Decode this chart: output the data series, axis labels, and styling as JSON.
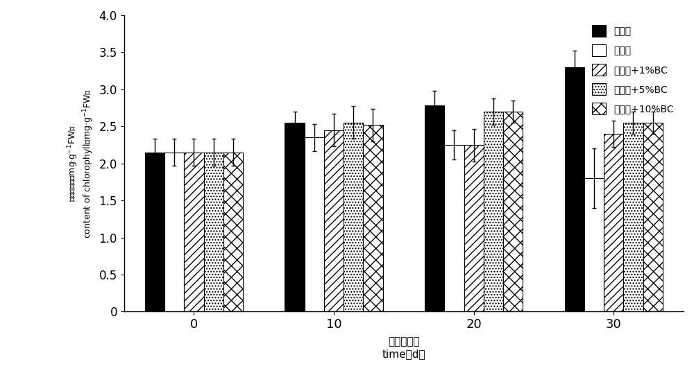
{
  "title": "",
  "xlabel_cn": "时间（天）",
  "xlabel_en": "time（d）",
  "ylabel_cn": "叶绿素含量（mg·g⁻¹FW）",
  "ylabel_en": "content of chlorophyll（mg·g⁻¹FW）",
  "x_positions": [
    0,
    10,
    20,
    30
  ],
  "x_labels": [
    "0",
    "10",
    "20",
    "30"
  ],
  "series_labels": [
    "对照土",
    "重茬土",
    "重茬土+1%BC",
    "重茬土+5%BC",
    "重茬土+10%BC"
  ],
  "bar_values": [
    [
      2.15,
      2.55,
      2.78,
      3.3
    ],
    [
      2.15,
      2.35,
      2.25,
      1.8
    ],
    [
      2.15,
      2.45,
      2.25,
      2.4
    ],
    [
      2.15,
      2.55,
      2.7,
      2.55
    ],
    [
      2.15,
      2.52,
      2.7,
      2.55
    ]
  ],
  "bar_errors": [
    [
      0.18,
      0.15,
      0.2,
      0.22
    ],
    [
      0.18,
      0.18,
      0.2,
      0.4
    ],
    [
      0.18,
      0.22,
      0.22,
      0.18
    ],
    [
      0.18,
      0.22,
      0.18,
      0.15
    ],
    [
      0.18,
      0.22,
      0.15,
      0.15
    ]
  ],
  "ylim": [
    0,
    4.0
  ],
  "yticks": [
    0,
    0.5,
    1.0,
    1.5,
    2.0,
    2.5,
    3.0,
    3.5,
    4.0
  ],
  "bar_width": 0.14,
  "figsize": [
    10.0,
    5.61
  ],
  "dpi": 100,
  "background_color": "#ffffff",
  "hatches": [
    "solid",
    "",
    "/",
    ".",
    "x"
  ],
  "facecolors": [
    "black",
    "white",
    "white",
    "white",
    "white"
  ],
  "edgecolors": [
    "black",
    "black",
    "black",
    "black",
    "black"
  ]
}
